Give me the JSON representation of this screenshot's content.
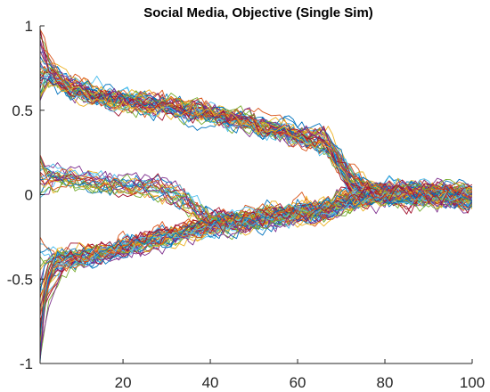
{
  "chart_data": {
    "type": "line",
    "title": "Social Media, Objective (Single Sim)",
    "xlabel": "",
    "ylabel": "",
    "xlim": [
      1,
      100
    ],
    "ylim": [
      -1,
      1
    ],
    "x_ticks": [
      20,
      40,
      60,
      80,
      100
    ],
    "x_tick_labels": [
      "20",
      "40",
      "60",
      "80",
      "100"
    ],
    "y_ticks": [
      -1,
      -0.5,
      0,
      0.5,
      1
    ],
    "y_tick_labels": [
      "-1",
      "-0.5",
      "0",
      "0.5",
      "1"
    ],
    "grid": false,
    "legend": "none",
    "series_count": 100,
    "num_steps": 100,
    "colors": [
      "#0072BD",
      "#D95319",
      "#EDB120",
      "#7E2F8E",
      "#77AC30",
      "#4DBEEE",
      "#A2142F"
    ],
    "clusters": [
      {
        "description": "upper opinion group",
        "start": 0.78,
        "at_x10": 0.58,
        "at_x40": 0.47,
        "at_x65": 0.3,
        "merge_x": 72,
        "end": 0.0,
        "count": 40
      },
      {
        "description": "middle opinion group",
        "start": 0.1,
        "at_x10": 0.08,
        "at_x30": 0.02,
        "merge_x": 40,
        "end": 0.0,
        "count": 20
      },
      {
        "description": "lower opinion group",
        "start": -0.45,
        "at_x15": -0.35,
        "at_x40": -0.17,
        "at_x65": -0.08,
        "merge_x": 72,
        "end": 0.0,
        "count": 40
      }
    ]
  }
}
